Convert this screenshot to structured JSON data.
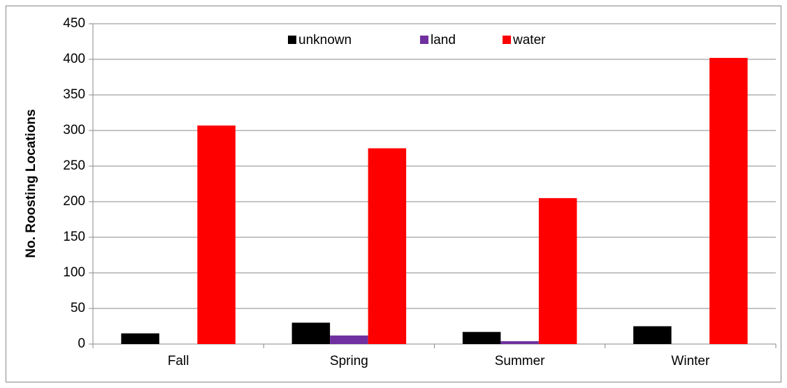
{
  "chart_data": {
    "type": "bar",
    "y_label": "No. Roosting Locations",
    "categories": [
      "Fall",
      "Spring",
      "Summer",
      "Winter"
    ],
    "series": [
      {
        "name": "unknown",
        "color": "#000000",
        "values": [
          15,
          30,
          17,
          25
        ]
      },
      {
        "name": "land",
        "color": "#7030a0",
        "values": [
          0,
          12,
          4,
          0
        ]
      },
      {
        "name": "water",
        "color": "#ff0000",
        "values": [
          307,
          275,
          205,
          402
        ]
      }
    ],
    "ylim": [
      0,
      450
    ],
    "yticks": [
      0,
      50,
      100,
      150,
      200,
      250,
      300,
      350,
      400,
      450
    ],
    "grid": true,
    "legend": "top"
  }
}
